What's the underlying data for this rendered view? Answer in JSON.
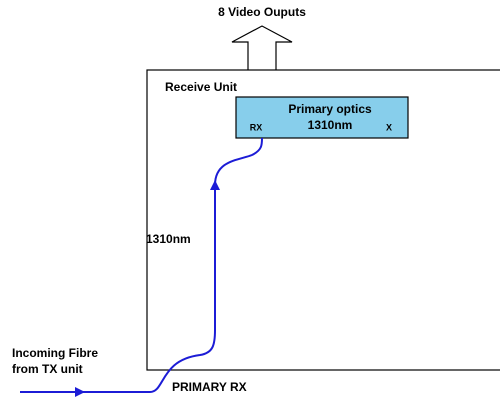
{
  "title": "8 Video Ouputs",
  "unit": {
    "label": "Receive Unit"
  },
  "optics": {
    "title": "Primary optics",
    "wavelength": "1310nm",
    "rx": "RX",
    "tx": "X"
  },
  "fibre": {
    "label": "1310nm",
    "source": [
      "Incoming Fibre",
      "from TX unit"
    ],
    "port": "PRIMARY RX"
  }
}
